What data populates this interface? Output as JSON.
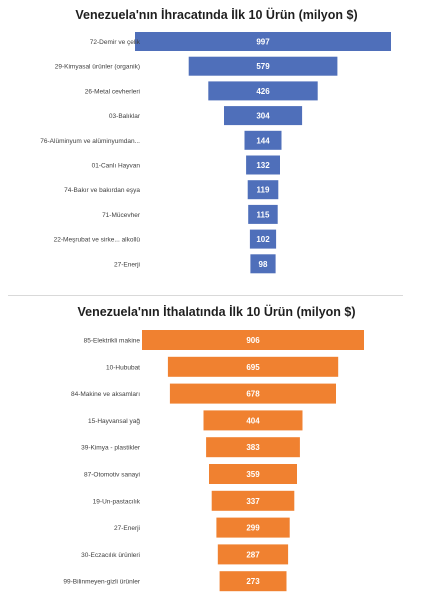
{
  "colors": {
    "export_bar": "#4f6fba",
    "import_bar": "#f08130"
  },
  "chart_data": [
    {
      "type": "bar",
      "orientation": "horizontal-centered",
      "title": "Venezuela'nın İhracatında İlk 10 Ürün (milyon $)",
      "categories": [
        "72-Demir ve çelik",
        "29-Kimyasal ürünler (organik)",
        "26-Metal cevherleri",
        "03-Balıklar",
        "76-Alüminyum ve alüminyumdan...",
        "01-Canlı Hayvan",
        "74-Bakır ve bakırdan eşya",
        "71-Mücevher",
        "22-Meşrubat ve sirke... alkollü",
        "27-Enerji"
      ],
      "values": [
        997,
        579,
        426,
        304,
        144,
        132,
        119,
        115,
        102,
        98
      ],
      "color": "#4f6fba"
    },
    {
      "type": "bar",
      "orientation": "horizontal-centered",
      "title": "Venezuela'nın İthalatında İlk 10 Ürün (milyon $)",
      "categories": [
        "85-Elektrikli makine",
        "10-Hububat",
        "84-Makine ve aksamları",
        "15-Hayvansal yağ",
        "39-Kimya - plastikler",
        "87-Otomotiv sanayi",
        "19-Un-pastacılık",
        "27-Enerji",
        "30-Eczacılık ürünleri",
        "99-Bilinmeyen-gizli ürünler"
      ],
      "values": [
        906,
        695,
        678,
        404,
        383,
        359,
        337,
        299,
        287,
        273
      ],
      "color": "#f08130"
    }
  ]
}
